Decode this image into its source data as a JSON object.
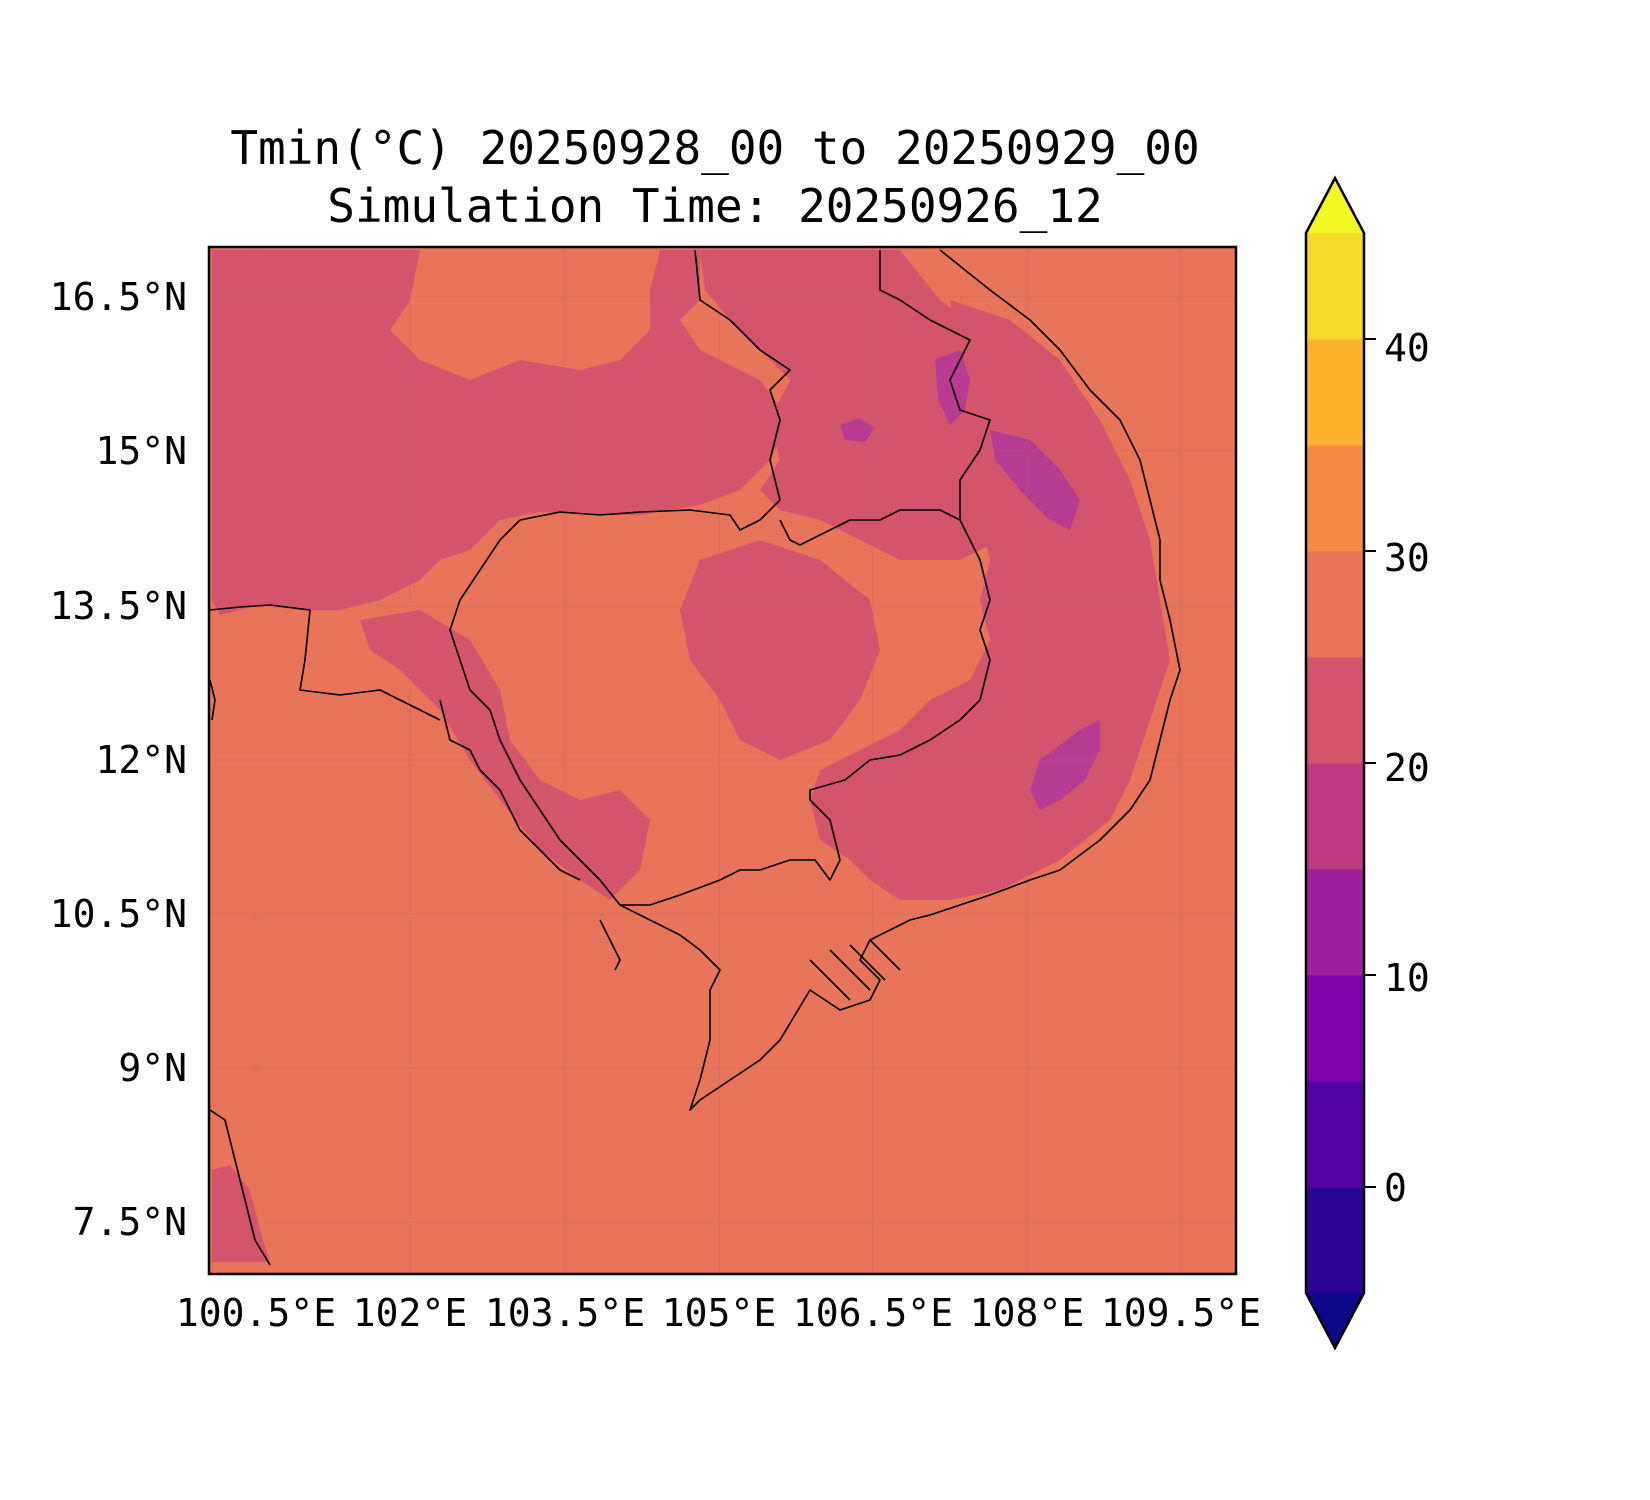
{
  "title": {
    "line1": "Tmin(°C) 20250928_00 to 20250929_00",
    "line2": "Simulation Time: 20250926_12"
  },
  "map": {
    "lat_labels": [
      "16.5°N",
      "15°N",
      "13.5°N",
      "12°N",
      "10.5°N",
      "9°N",
      "7.5°N"
    ],
    "lon_labels": [
      "100.5°E",
      "102°E",
      "103.5°E",
      "105°E",
      "106.5°E",
      "108°E",
      "109.5°E"
    ],
    "field_levels_c": {
      "background": [
        25,
        30
      ],
      "warm_patches": [
        20,
        25
      ],
      "cool_patches": [
        15,
        20
      ]
    },
    "colors": {
      "level_25_30": "#e8755a",
      "level_20_25": "#d4546d",
      "level_15_20": "#b83b92"
    }
  },
  "colorbar": {
    "tick_labels": [
      "0",
      "10",
      "20",
      "30",
      "40"
    ],
    "ticks": [
      0,
      10,
      20,
      30,
      40
    ],
    "range": [
      -5,
      45
    ],
    "extend": "both",
    "colors": [
      "#0d0887",
      "#2a0593",
      "#5302a3",
      "#7e03a8",
      "#a01f9b",
      "#c03a83",
      "#d5546e",
      "#e8755a",
      "#f58c46",
      "#fdb32f",
      "#f5db25",
      "#f0f921"
    ]
  }
}
